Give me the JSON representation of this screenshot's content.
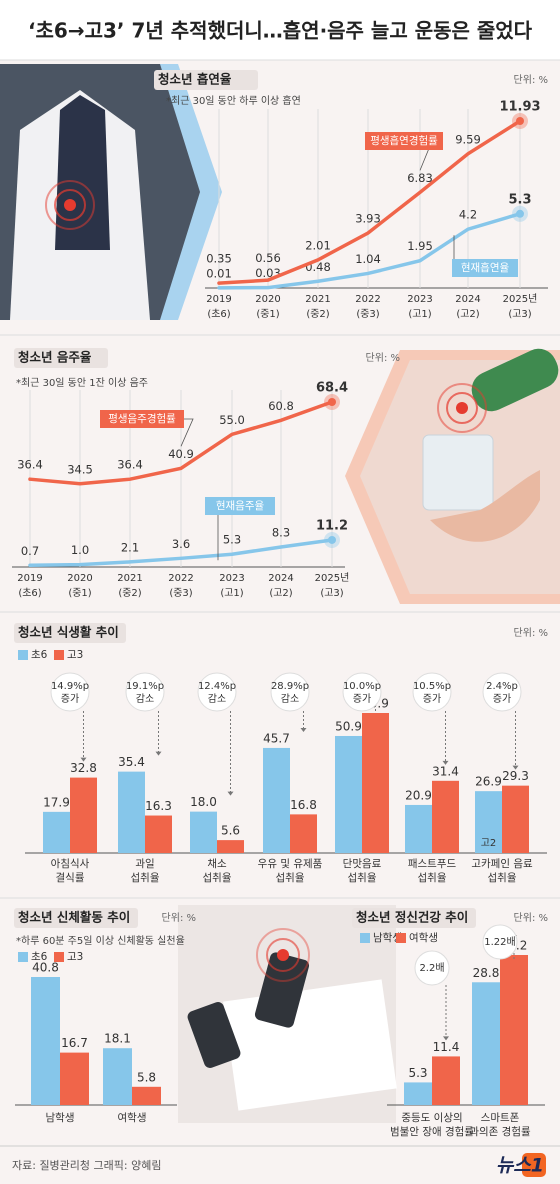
{
  "title": "‘초6→고3’ 7년 추적했더니…흡연·음주 늘고 운동은 줄었다",
  "chart_data": [
    {
      "type": "line",
      "title": "청소년 흡연율",
      "unit": "단위: %",
      "note": "*최근 30일 동안 하루 이상 흡연",
      "categories": [
        "2019",
        "2020",
        "2021",
        "2022",
        "2023",
        "2024",
        "2025년"
      ],
      "category_notes": [
        "(초6)",
        "(중1)",
        "(중2)",
        "(중3)",
        "(고1)",
        "(고2)",
        "(고3)"
      ],
      "series": [
        {
          "name": "평생흡연경험률",
          "color": "#f0654a",
          "values": [
            0.35,
            0.56,
            2.01,
            3.93,
            6.83,
            9.59,
            11.93
          ]
        },
        {
          "name": "현재흡연율",
          "color": "#86c6ea",
          "values": [
            0.01,
            0.03,
            0.48,
            1.04,
            1.95,
            4.2,
            5.3
          ]
        }
      ]
    },
    {
      "type": "line",
      "title": "청소년 음주율",
      "unit": "단위: %",
      "note": "*최근 30일 동안 1잔 이상 음주",
      "categories": [
        "2019",
        "2020",
        "2021",
        "2022",
        "2023",
        "2024",
        "2025년"
      ],
      "category_notes": [
        "(초6)",
        "(중1)",
        "(중2)",
        "(중3)",
        "(고1)",
        "(고2)",
        "(고3)"
      ],
      "series": [
        {
          "name": "평생음주경험률",
          "color": "#f0654a",
          "values": [
            36.4,
            34.5,
            36.4,
            40.9,
            55,
            60.8,
            68.4
          ],
          "value_labels": [
            "36.4",
            "34.5",
            "36.4",
            "40.9",
            "55.0",
            "60.8",
            "68.4"
          ]
        },
        {
          "name": "현재음주율",
          "color": "#86c6ea",
          "values": [
            0.7,
            1,
            2.1,
            3.6,
            5.3,
            8.3,
            11.2
          ],
          "value_labels": [
            "0.7",
            "1.0",
            "2.1",
            "3.6",
            "5.3",
            "8.3",
            "11.2"
          ]
        }
      ]
    },
    {
      "type": "bar",
      "title": "청소년 식생활 추이",
      "unit": "단위: %",
      "categories": [
        [
          "아침식사",
          "결식률"
        ],
        [
          "과일",
          "섭취율"
        ],
        [
          "채소",
          "섭취율"
        ],
        [
          "우유 및 유제품",
          "섭취율"
        ],
        [
          "단맛음료",
          "섭취율"
        ],
        [
          "패스트푸드",
          "섭취율"
        ],
        [
          "고카페인 음료",
          "섭취율"
        ]
      ],
      "series": [
        {
          "name": "초6",
          "color": "#86c6ea",
          "values": [
            17.9,
            35.4,
            18,
            45.7,
            50.9,
            20.9,
            26.9
          ],
          "value_labels": [
            "17.9",
            "35.4",
            "18.0",
            "45.7",
            "50.9",
            "20.9",
            "26.9"
          ]
        },
        {
          "name": "고3",
          "color": "#f0654a",
          "values": [
            32.8,
            16.3,
            5.6,
            16.8,
            60.9,
            31.4,
            29.3
          ]
        }
      ],
      "annotations": [
        [
          "14.9%p",
          "증가"
        ],
        [
          "19.1%p",
          "감소"
        ],
        [
          "12.4%p",
          "감소"
        ],
        [
          "28.9%p",
          "감소"
        ],
        [
          "10.0%p",
          "증가"
        ],
        [
          "10.5%p",
          "증가"
        ],
        [
          "2.4%p",
          "증가"
        ]
      ],
      "bar_note": "고2"
    },
    {
      "type": "bar",
      "title": "청소년 신체활동 추이",
      "unit": "단위: %",
      "note": "*하루 60분 주5일 이상 신체활동 실천율",
      "categories": [
        [
          "남학생"
        ],
        [
          "여학생"
        ]
      ],
      "series": [
        {
          "name": "초6",
          "color": "#86c6ea",
          "values": [
            40.8,
            18.1
          ]
        },
        {
          "name": "고3",
          "color": "#f0654a",
          "values": [
            16.7,
            5.8
          ]
        }
      ]
    },
    {
      "type": "bar",
      "title": "청소년 정신건강 추이",
      "unit": "단위: %",
      "categories": [
        [
          "중등도 이상의",
          "범불안 장애 경험률"
        ],
        [
          "스마트폰",
          "과의존 경험률"
        ]
      ],
      "series": [
        {
          "name": "남학생",
          "color": "#86c6ea",
          "values": [
            5.3,
            28.8
          ]
        },
        {
          "name": "여학생",
          "color": "#f0654a",
          "values": [
            11.4,
            35.2
          ]
        }
      ],
      "annotations": [
        [
          "2.2배"
        ],
        [
          "1.22배"
        ]
      ]
    }
  ],
  "footer": {
    "source": "자료: 질병관리청  그래픽: 양혜림",
    "logo": "뉴스1"
  }
}
